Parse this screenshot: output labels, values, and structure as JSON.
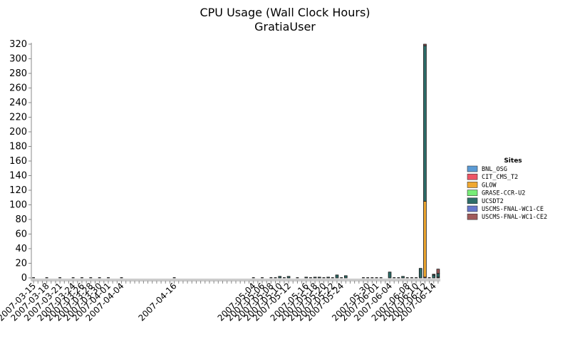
{
  "chart_data": {
    "type": "bar",
    "stacked": true,
    "title": "CPU Usage (Wall Clock Hours)",
    "subtitle": "GratiaUser",
    "xlabel": "",
    "ylabel": "",
    "ylim": [
      0,
      320
    ],
    "yticks": [
      0,
      20,
      40,
      60,
      80,
      100,
      120,
      140,
      160,
      180,
      200,
      220,
      240,
      260,
      280,
      300,
      320
    ],
    "legend_title": "Sites",
    "legend_position": "right",
    "categories": [
      "2007-03-15",
      "2007-03-16",
      "2007-03-17",
      "2007-03-18",
      "2007-03-19",
      "2007-03-20",
      "2007-03-21",
      "2007-03-22",
      "2007-03-23",
      "2007-03-24",
      "2007-03-25",
      "2007-03-26",
      "2007-03-27",
      "2007-03-28",
      "2007-03-29",
      "2007-03-30",
      "2007-03-31",
      "2007-04-01",
      "2007-04-02",
      "2007-04-03",
      "2007-04-04",
      "2007-04-05",
      "2007-04-06",
      "2007-04-07",
      "2007-04-08",
      "2007-04-09",
      "2007-04-10",
      "2007-04-11",
      "2007-04-12",
      "2007-04-13",
      "2007-04-14",
      "2007-04-15",
      "2007-04-16",
      "2007-04-17",
      "2007-04-18",
      "2007-04-19",
      "2007-04-20",
      "2007-04-21",
      "2007-04-22",
      "2007-04-23",
      "2007-04-24",
      "2007-04-25",
      "2007-04-26",
      "2007-04-27",
      "2007-04-28",
      "2007-04-29",
      "2007-04-30",
      "2007-05-01",
      "2007-05-02",
      "2007-05-03",
      "2007-05-04",
      "2007-05-05",
      "2007-05-06",
      "2007-05-07",
      "2007-05-08",
      "2007-05-09",
      "2007-05-10",
      "2007-05-11",
      "2007-05-12",
      "2007-05-13",
      "2007-05-14",
      "2007-05-15",
      "2007-05-16",
      "2007-05-17",
      "2007-05-18",
      "2007-05-19",
      "2007-05-20",
      "2007-05-21",
      "2007-05-22",
      "2007-05-23",
      "2007-05-24",
      "2007-05-25",
      "2007-05-26",
      "2007-05-27",
      "2007-05-28",
      "2007-05-29",
      "2007-05-30",
      "2007-05-31",
      "2007-06-01",
      "2007-06-02",
      "2007-06-03",
      "2007-06-04",
      "2007-06-05",
      "2007-06-06",
      "2007-06-07",
      "2007-06-08",
      "2007-06-09",
      "2007-06-10",
      "2007-06-11",
      "2007-06-12",
      "2007-06-13",
      "2007-06-14",
      "2007-06-15"
    ],
    "tick_labels": [
      "2007-03-15",
      "2007-03-18",
      "2007-03-21",
      "2007-03-24",
      "2007-03-26",
      "2007-03-28",
      "2007-03-30",
      "2007-04-01",
      "2007-04-04",
      "2007-04-16",
      "2007-05-04",
      "2007-05-06",
      "2007-05-08",
      "2007-05-10",
      "2007-05-12",
      "2007-05-16",
      "2007-05-18",
      "2007-05-20",
      "2007-05-22",
      "2007-05-24",
      "2007-05-30",
      "2007-06-01",
      "2007-06-04",
      "2007-06-08",
      "2007-06-10",
      "2007-06-12",
      "2007-06-14"
    ],
    "dates": [
      "2007-03-15",
      "2007-03-18",
      "2007-03-21",
      "2007-03-24",
      "2007-03-26",
      "2007-03-28",
      "2007-03-30",
      "2007-04-01",
      "2007-04-04",
      "2007-04-16",
      "2007-05-04",
      "2007-05-06",
      "2007-05-08",
      "2007-05-09",
      "2007-05-10",
      "2007-05-11",
      "2007-05-12",
      "2007-05-14",
      "2007-05-16",
      "2007-05-17",
      "2007-05-18",
      "2007-05-19",
      "2007-05-20",
      "2007-05-21",
      "2007-05-22",
      "2007-05-23",
      "2007-05-24",
      "2007-05-25",
      "2007-05-29",
      "2007-05-30",
      "2007-05-31",
      "2007-06-01",
      "2007-06-02",
      "2007-06-04",
      "2007-06-05",
      "2007-06-06",
      "2007-06-07",
      "2007-06-08",
      "2007-06-09",
      "2007-06-10",
      "2007-06-11",
      "2007-06-12",
      "2007-06-13",
      "2007-06-14",
      "2007-06-15"
    ],
    "series": [
      {
        "name": "BNL_OSG",
        "color": "#5b9bd5",
        "values": [
          0,
          0,
          0,
          0,
          0,
          0,
          0,
          0,
          0,
          0,
          0,
          0,
          0,
          0,
          0,
          0,
          0,
          0,
          0,
          0,
          0,
          0,
          0,
          0,
          0,
          0,
          0,
          0,
          0,
          0,
          0,
          0,
          0,
          0,
          0,
          0,
          0,
          0,
          0,
          0,
          0,
          0,
          0,
          0,
          0
        ]
      },
      {
        "name": "CIT_CMS_T2",
        "color": "#ee5566",
        "values": [
          0,
          0,
          0,
          0,
          0,
          0,
          0,
          0,
          0,
          0,
          0,
          0,
          0,
          0,
          0,
          0,
          0,
          0,
          0,
          0,
          0,
          0,
          0,
          0,
          0,
          0,
          0,
          0,
          0,
          0,
          0,
          0,
          0,
          0,
          0,
          0,
          0,
          0,
          0,
          0,
          0,
          1,
          0,
          0,
          1
        ]
      },
      {
        "name": "GLOW",
        "color": "#f0a830",
        "values": [
          0,
          0,
          0,
          0,
          0,
          0,
          0,
          0,
          0,
          0,
          0,
          0,
          0,
          0,
          0,
          0,
          0,
          0,
          0,
          0,
          0,
          0,
          0,
          0,
          0,
          0,
          0,
          0,
          0,
          0,
          0,
          0,
          0,
          0,
          0,
          0,
          0,
          0,
          0,
          0,
          0,
          104,
          0,
          0,
          0
        ]
      },
      {
        "name": "GRASE-CCR-U2",
        "color": "#77ee77",
        "values": [
          0,
          0,
          0,
          0,
          0,
          0,
          0,
          0,
          0,
          0,
          0,
          0,
          0,
          0,
          0,
          0,
          0,
          0,
          0,
          0,
          0,
          0,
          0,
          0,
          0,
          0,
          0,
          0,
          0,
          0,
          0,
          0,
          0,
          0,
          0,
          0,
          0,
          0,
          0,
          0,
          0,
          0,
          0,
          0,
          0
        ]
      },
      {
        "name": "UCSDT2",
        "color": "#2e6e6a",
        "values": [
          0,
          0,
          0,
          0,
          0,
          0,
          0,
          0,
          0,
          0,
          0,
          0,
          0,
          0,
          2,
          0,
          2,
          0,
          1,
          0,
          1,
          1,
          0,
          1,
          0,
          4,
          0,
          3,
          0,
          0,
          0,
          0,
          0,
          8,
          0,
          0,
          2,
          0,
          0,
          0,
          13,
          213,
          0,
          4,
          5
        ]
      },
      {
        "name": "USCMS-FNAL-WC1-CE",
        "color": "#6677cc",
        "values": [
          0,
          0,
          0,
          0,
          0,
          0,
          0,
          0,
          0,
          0,
          0,
          0,
          0,
          0,
          0,
          0,
          0,
          0,
          0,
          0,
          0,
          0,
          0,
          0,
          0,
          0,
          0,
          0,
          0,
          0,
          0,
          0,
          0,
          0,
          0,
          0,
          0,
          0,
          0,
          0,
          0,
          0,
          0,
          0,
          0
        ]
      },
      {
        "name": "USCMS-FNAL-WC1-CE2",
        "color": "#a05a5a",
        "values": [
          0,
          0,
          0,
          0,
          0,
          0,
          0,
          0,
          0,
          0,
          0,
          0,
          0,
          0,
          0,
          0,
          0,
          0,
          0,
          0,
          0,
          0,
          0,
          0,
          0,
          0,
          0,
          0,
          0,
          0,
          0,
          0,
          0,
          0,
          0,
          0,
          0,
          0,
          0,
          0,
          0,
          2,
          0,
          1,
          6
        ]
      }
    ]
  }
}
